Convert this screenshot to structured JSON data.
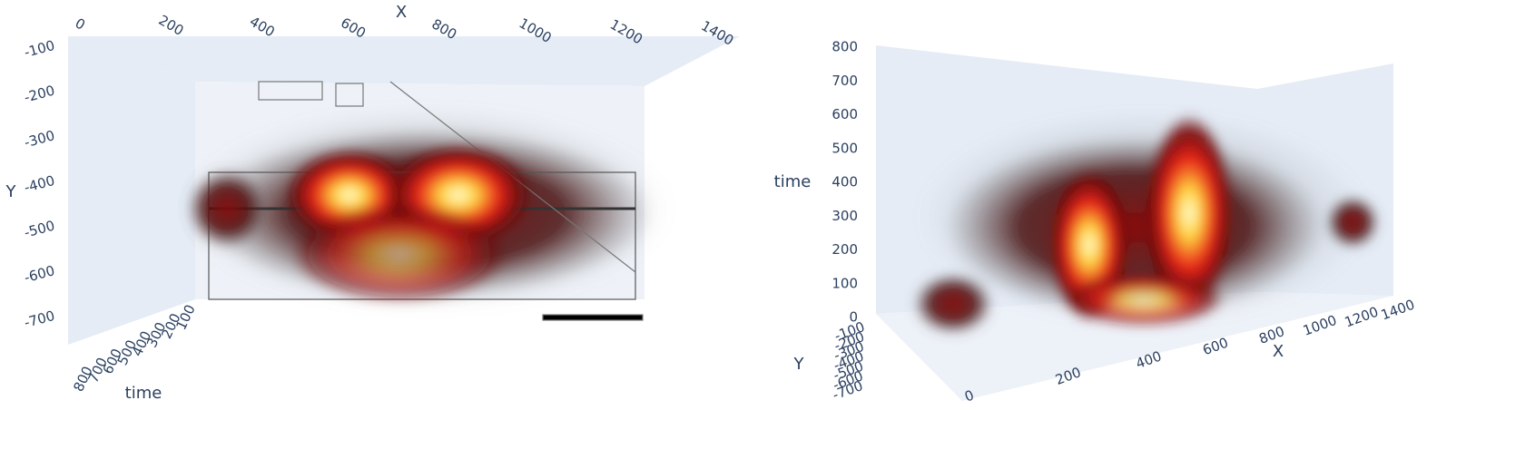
{
  "chart_data": [
    {
      "type": "heatmap3d",
      "x_label": "X",
      "y_label": "Y",
      "z_label": "time",
      "xlim": [
        0,
        1400
      ],
      "xticks": [
        0,
        200,
        400,
        600,
        800,
        1000,
        1200,
        1400
      ],
      "ylim": [
        -100,
        -700
      ],
      "yticks": [
        -100,
        -200,
        -300,
        -400,
        -500,
        -600,
        -700
      ],
      "zlim": [
        100,
        800
      ],
      "zticks": [
        100,
        200,
        300,
        400,
        500,
        600,
        700,
        800
      ]
    },
    {
      "type": "heatmap3d",
      "x_label": "X",
      "y_label": "Y",
      "z_label": "time",
      "xlim": [
        0,
        1400
      ],
      "xticks": [
        0,
        200,
        400,
        600,
        800,
        1000,
        1200,
        1400
      ],
      "ylim": [
        -100,
        -700
      ],
      "yticks": [
        -100,
        -200,
        -300,
        -400,
        -500,
        -600,
        -700
      ],
      "zlim": [
        0,
        800
      ],
      "zticks": [
        0,
        100,
        200,
        300,
        400,
        500,
        600,
        700,
        800
      ]
    }
  ]
}
